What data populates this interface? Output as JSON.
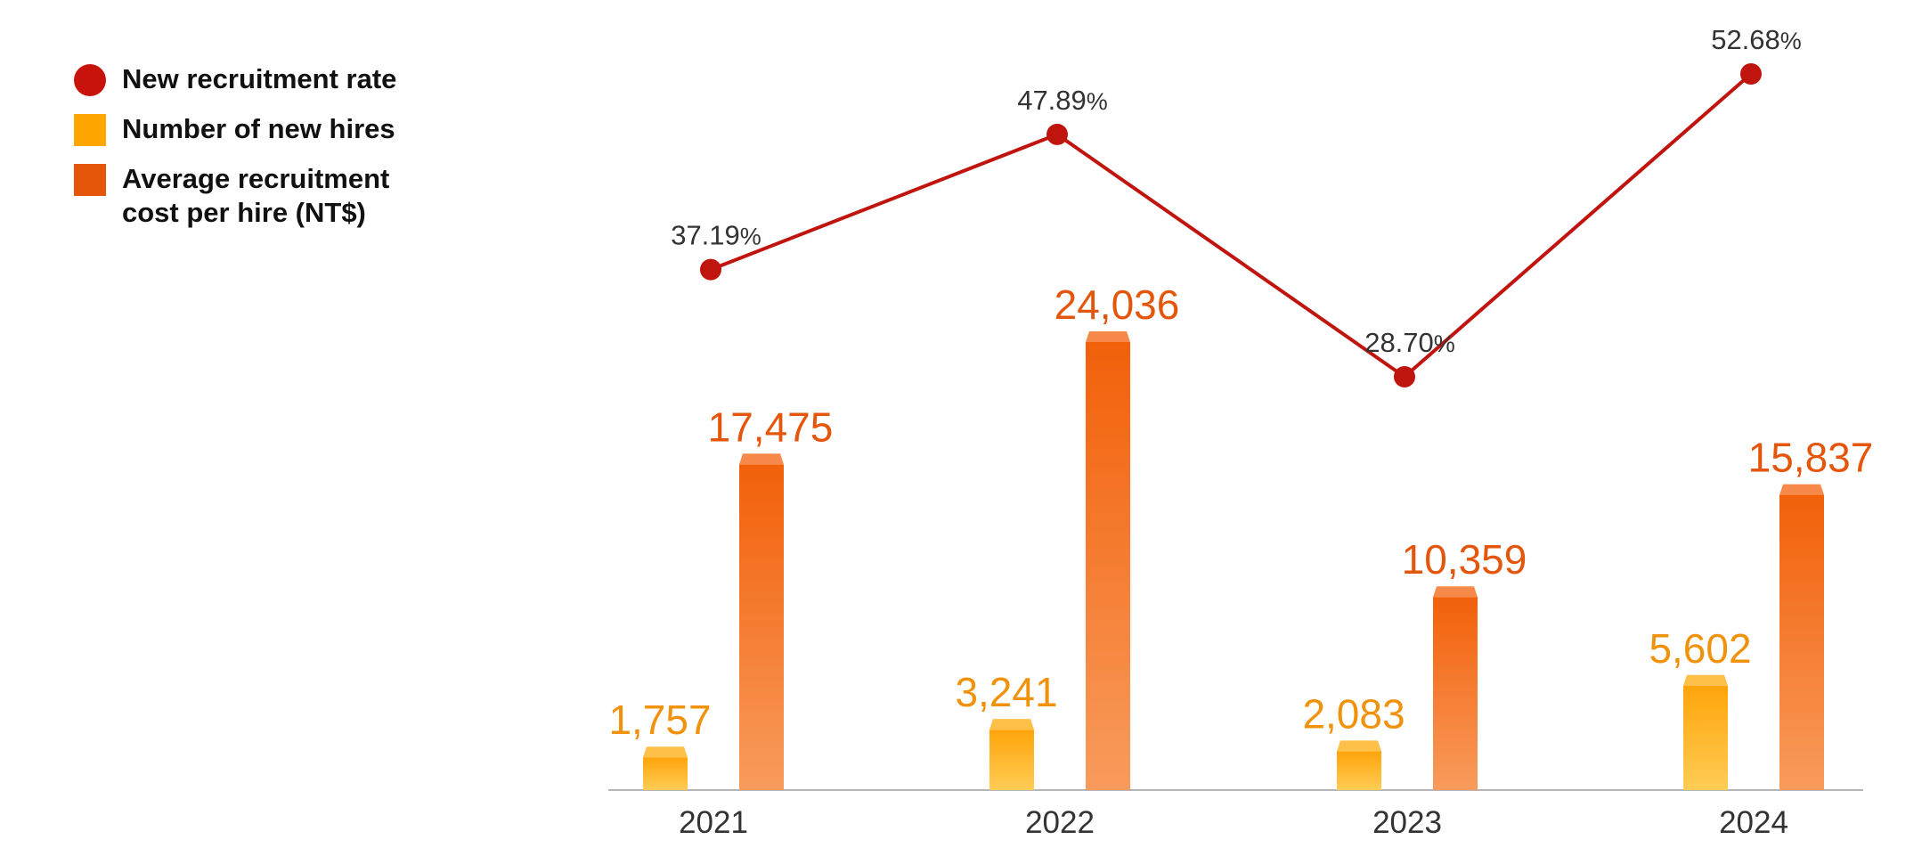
{
  "legend": {
    "items": [
      {
        "label": "New recruitment rate",
        "marker": "circle",
        "color": "#c8120c"
      },
      {
        "label": "Number of new hires",
        "marker": "square",
        "color": "#ffa600"
      },
      {
        "label": "Average recruitment\ncost per hire (NT$)",
        "marker": "square",
        "color": "#e5560b"
      }
    ]
  },
  "colors": {
    "line": "#c0150f",
    "hires_top": "#ffa40a",
    "hires_bottom": "#ffcc55",
    "hires_cap": "#ffc04a",
    "hires_label": "#f0920c",
    "cost_top": "#f2600a",
    "cost_bottom": "#f89b5c",
    "cost_cap": "#f78a4a",
    "cost_label": "#e4560b",
    "axis": "#b5b5b5",
    "text": "#333333"
  },
  "chart_data": {
    "type": "bar",
    "categories": [
      "2021",
      "2022",
      "2023",
      "2024"
    ],
    "series": [
      {
        "name": "Number of new hires",
        "type": "bar",
        "values": [
          1757,
          3241,
          2083,
          5602
        ],
        "labels": [
          "1,757",
          "3,241",
          "2,083",
          "5,602"
        ]
      },
      {
        "name": "Average recruitment cost per hire (NT$)",
        "type": "bar",
        "values": [
          17475,
          24036,
          10359,
          15837
        ],
        "labels": [
          "17,475",
          "24,036",
          "10,359",
          "15,837"
        ]
      },
      {
        "name": "New recruitment rate",
        "type": "line",
        "values": [
          37.19,
          47.89,
          28.7,
          52.68
        ],
        "labels": [
          "37.19",
          "47.89",
          "28.70",
          "52.68"
        ],
        "unit": "%"
      }
    ],
    "legend_position": "top-left",
    "grid": false
  }
}
